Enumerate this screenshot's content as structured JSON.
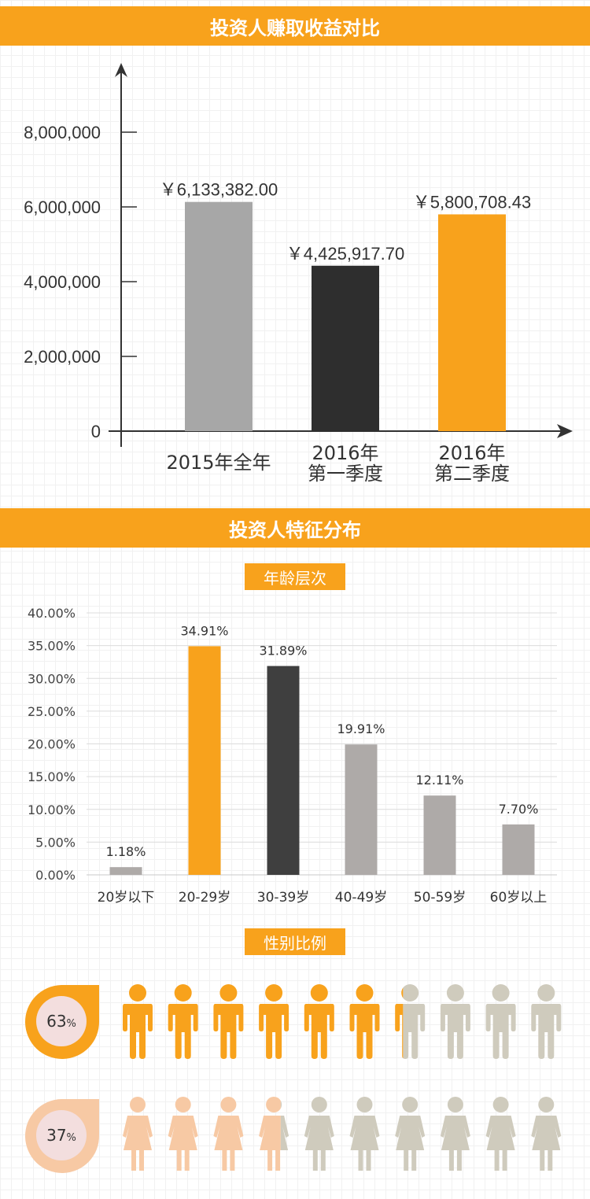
{
  "section1": {
    "title": "投资人赚取收益对比"
  },
  "section2": {
    "title": "投资人特征分布"
  },
  "age_subtitle": "年龄层次",
  "gender_subtitle": "性别比例",
  "gender": {
    "male_label": "63",
    "female_label": "37",
    "unit": "%",
    "male_value": 0.63,
    "female_value": 0.37,
    "icons_per_row": 10,
    "colors": {
      "male": "#f8a21c",
      "female": "#f7c9a4",
      "neutral": "#cfcbbd"
    }
  },
  "chart_data": [
    {
      "type": "bar",
      "title": "投资人赚取收益对比",
      "categories": [
        "2015年全年",
        "2016年\n第一季度",
        "2016年\n第二季度"
      ],
      "values": [
        6133382.0,
        4425917.7,
        5800708.43
      ],
      "data_labels": [
        "￥6,133,382.00",
        "￥4,425,917.70",
        "￥5,800,708.43"
      ],
      "yticks": [
        "0",
        "2,000,000",
        "4,000,000",
        "6,000,000",
        "8,000,000"
      ],
      "ytick_values": [
        0,
        2000000,
        4000000,
        6000000,
        8000000
      ],
      "ylim": [
        0,
        8000000
      ],
      "colors": [
        "#a7a7a7",
        "#2e2e2e",
        "#f8a21c"
      ]
    },
    {
      "type": "bar",
      "title": "年龄层次",
      "categories": [
        "20岁以下",
        "20-29岁",
        "30-39岁",
        "40-49岁",
        "50-59岁",
        "60岁以上"
      ],
      "values": [
        1.18,
        34.91,
        31.89,
        19.91,
        12.11,
        7.7
      ],
      "data_labels": [
        "1.18%",
        "34.91%",
        "31.89%",
        "19.91%",
        "12.11%",
        "7.70%"
      ],
      "yticks": [
        "0.00%",
        "5.00%",
        "10.00%",
        "15.00%",
        "20.00%",
        "25.00%",
        "30.00%",
        "35.00%",
        "40.00%"
      ],
      "ytick_values": [
        0,
        5,
        10,
        15,
        20,
        25,
        30,
        35,
        40
      ],
      "ylim": [
        0,
        40
      ],
      "grid": true,
      "colors": [
        "#aeaaa8",
        "#f8a21c",
        "#3f3f3f",
        "#aeaaa8",
        "#aeaaa8",
        "#aeaaa8"
      ]
    }
  ]
}
